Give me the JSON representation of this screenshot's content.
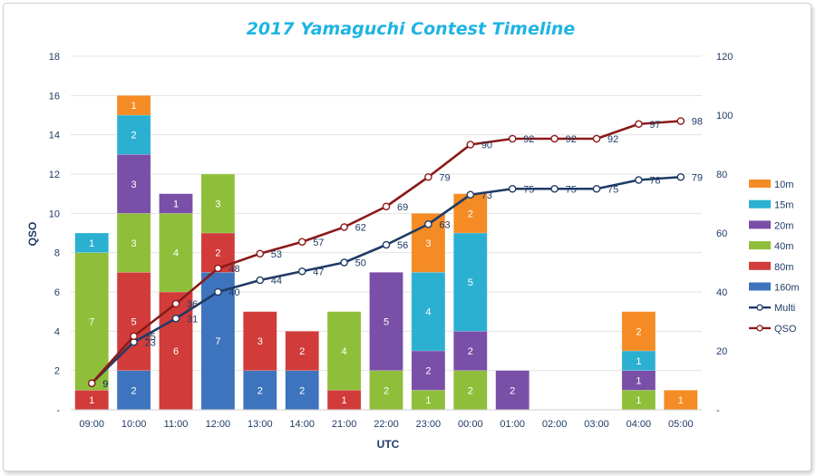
{
  "chart_data": {
    "type": "bar",
    "title": "2017 Yamaguchi Contest Timeline",
    "xlabel": "UTC",
    "ylabel": "QSO",
    "ylim": [
      0,
      18
    ],
    "y_ticks": [
      "0",
      "2",
      "4",
      "6",
      "8",
      "10",
      "12",
      "14",
      "16",
      "18"
    ],
    "y2lim": [
      0,
      120
    ],
    "y2_ticks": [
      "0",
      "20",
      "40",
      "60",
      "80",
      "100",
      "120"
    ],
    "bottom_tick_label": "-",
    "categories": [
      "09:00",
      "10:00",
      "11:00",
      "12:00",
      "13:00",
      "14:00",
      "21:00",
      "22:00",
      "23:00",
      "00:00",
      "01:00",
      "02:00",
      "03:00",
      "04:00",
      "05:00"
    ],
    "series": [
      {
        "name": "160m",
        "color": "#3e74be",
        "values": [
          0,
          2,
          0,
          7,
          2,
          2,
          0,
          0,
          0,
          0,
          0,
          0,
          0,
          0,
          0
        ]
      },
      {
        "name": "80m",
        "color": "#d13c3a",
        "values": [
          1,
          5,
          6,
          2,
          3,
          2,
          1,
          0,
          0,
          0,
          0,
          0,
          0,
          0,
          0
        ]
      },
      {
        "name": "40m",
        "color": "#8fbf3a",
        "values": [
          7,
          3,
          4,
          3,
          0,
          0,
          4,
          2,
          1,
          2,
          0,
          0,
          0,
          1,
          0
        ]
      },
      {
        "name": "20m",
        "color": "#7a4fa8",
        "values": [
          0,
          3,
          1,
          0,
          0,
          0,
          0,
          5,
          2,
          2,
          2,
          0,
          0,
          1,
          0
        ]
      },
      {
        "name": "15m",
        "color": "#2cb0d2",
        "values": [
          1,
          2,
          0,
          0,
          0,
          0,
          0,
          0,
          4,
          5,
          0,
          0,
          0,
          1,
          0
        ]
      },
      {
        "name": "10m",
        "color": "#f58b24",
        "values": [
          0,
          1,
          0,
          0,
          0,
          0,
          0,
          0,
          3,
          2,
          0,
          0,
          0,
          2,
          1
        ]
      }
    ],
    "lines": [
      {
        "name": "Multi",
        "color": "#1f3b66",
        "axis": "right",
        "values": [
          9,
          23,
          31,
          40,
          44,
          47,
          50,
          56,
          63,
          73,
          75,
          75,
          75,
          78,
          79
        ]
      },
      {
        "name": "QSO",
        "color": "#8b1a1a",
        "axis": "right",
        "values": [
          9,
          25,
          36,
          48,
          53,
          57,
          62,
          69,
          79,
          90,
          92,
          92,
          92,
          97,
          98
        ]
      }
    ],
    "legend": [
      "10m",
      "15m",
      "20m",
      "40m",
      "80m",
      "160m",
      "Multi",
      "QSO"
    ],
    "legend_position": "right",
    "grid": true
  }
}
